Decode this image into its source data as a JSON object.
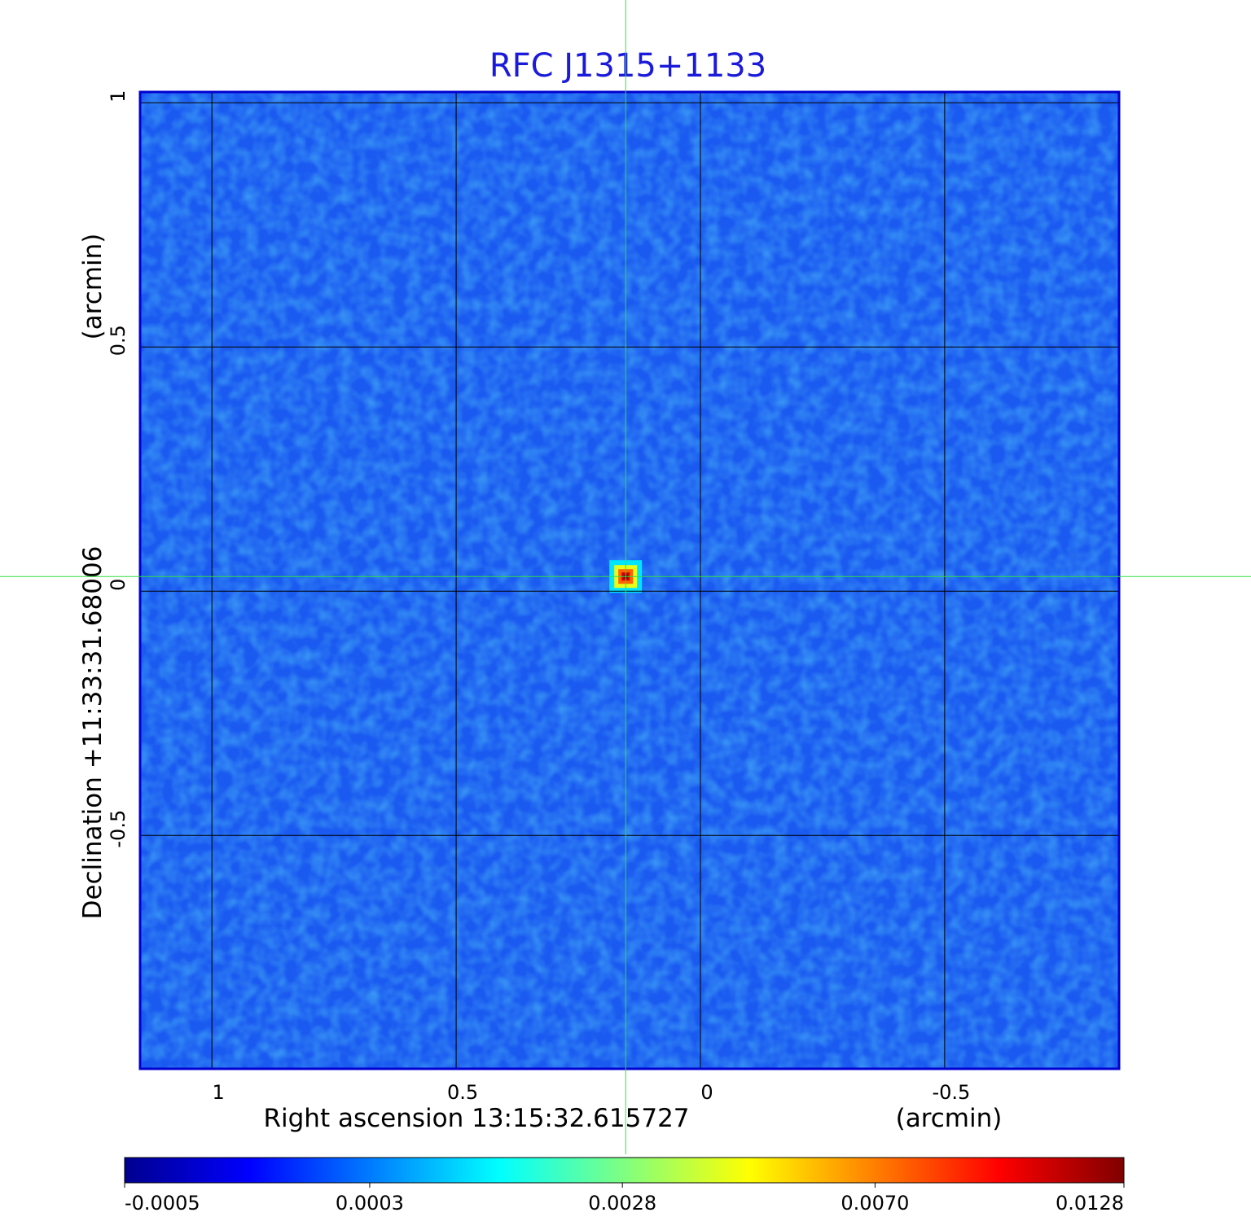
{
  "chart_data": {
    "type": "image",
    "title": "RFC J1315+1133",
    "x_label": "Right ascension  13:15:32.615727",
    "x_unit": "(arcmin)",
    "y_label": "Declination  +11:33:31.68006",
    "y_unit": "(arcmin)",
    "xlim": [
      1.147,
      -0.857
    ],
    "ylim": [
      -0.978,
      1.022
    ],
    "xticks": [
      1.0,
      0.5,
      0.0,
      -0.5
    ],
    "yticks": [
      1.0,
      0.5,
      0.0,
      -0.5
    ],
    "grid": true,
    "crosshair": {
      "x": 0.153,
      "y": 0.03
    },
    "sources": [
      {
        "x": 0.153,
        "y": 0.03,
        "peak": 0.0128
      }
    ],
    "colorbar": {
      "scale": "sqrt",
      "clim": [
        -0.0005,
        0.0128
      ],
      "cmap": "jet",
      "ticks": [
        -0.0005,
        0.0003,
        0.0028,
        {
          "value": 0.007,
          "label": "0.0070"
        },
        0.0128
      ]
    }
  }
}
